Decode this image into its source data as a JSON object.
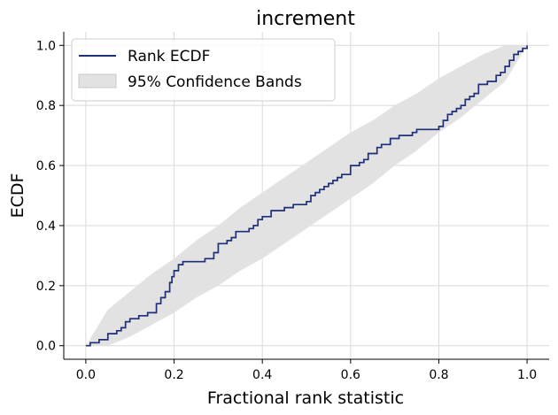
{
  "chart_data": {
    "type": "line",
    "title": "increment",
    "xlabel": "Fractional rank statistic",
    "ylabel": "ECDF",
    "xlim": [
      -0.05,
      1.05
    ],
    "ylim": [
      -0.045,
      1.045
    ],
    "xticks": [
      0.0,
      0.2,
      0.4,
      0.6,
      0.8,
      1.0
    ],
    "xtick_labels": [
      "0.0",
      "0.2",
      "0.4",
      "0.6",
      "0.8",
      "1.0"
    ],
    "yticks": [
      0.0,
      0.2,
      0.4,
      0.6,
      0.8,
      1.0
    ],
    "ytick_labels": [
      "0.0",
      "0.2",
      "0.4",
      "0.6",
      "0.8",
      "1.0"
    ],
    "grid": true,
    "legend_position": "top-left",
    "colors": {
      "ecdf": "#1f2f7a",
      "band": "#e2e2e2",
      "grid": "#d9d9d9"
    },
    "series": [
      {
        "name": "Rank ECDF",
        "type": "step",
        "x": [
          0.0,
          0.01,
          0.03,
          0.05,
          0.07,
          0.08,
          0.09,
          0.1,
          0.11,
          0.12,
          0.14,
          0.16,
          0.17,
          0.18,
          0.19,
          0.195,
          0.2,
          0.21,
          0.22,
          0.25,
          0.27,
          0.29,
          0.3,
          0.32,
          0.33,
          0.34,
          0.35,
          0.37,
          0.38,
          0.39,
          0.4,
          0.42,
          0.45,
          0.47,
          0.48,
          0.5,
          0.51,
          0.52,
          0.53,
          0.54,
          0.55,
          0.56,
          0.57,
          0.58,
          0.6,
          0.62,
          0.63,
          0.64,
          0.66,
          0.67,
          0.69,
          0.71,
          0.74,
          0.75,
          0.79,
          0.8,
          0.81,
          0.82,
          0.83,
          0.84,
          0.85,
          0.86,
          0.87,
          0.88,
          0.89,
          0.9,
          0.91,
          0.92,
          0.93,
          0.94,
          0.95,
          0.96,
          0.97,
          0.98,
          0.99,
          1.0
        ],
        "y": [
          0.0,
          0.01,
          0.02,
          0.04,
          0.05,
          0.06,
          0.08,
          0.09,
          0.09,
          0.1,
          0.11,
          0.14,
          0.16,
          0.18,
          0.21,
          0.23,
          0.25,
          0.27,
          0.28,
          0.28,
          0.29,
          0.31,
          0.34,
          0.35,
          0.36,
          0.38,
          0.38,
          0.39,
          0.4,
          0.42,
          0.43,
          0.45,
          0.46,
          0.47,
          0.47,
          0.48,
          0.5,
          0.51,
          0.52,
          0.53,
          0.54,
          0.55,
          0.56,
          0.57,
          0.6,
          0.61,
          0.62,
          0.64,
          0.66,
          0.67,
          0.69,
          0.7,
          0.71,
          0.72,
          0.72,
          0.73,
          0.75,
          0.77,
          0.78,
          0.79,
          0.8,
          0.82,
          0.83,
          0.84,
          0.87,
          0.87,
          0.88,
          0.88,
          0.9,
          0.91,
          0.93,
          0.95,
          0.97,
          0.98,
          0.99,
          1.0
        ]
      },
      {
        "name": "95% Confidence Bands",
        "type": "band",
        "x": [
          0.0,
          0.05,
          0.1,
          0.15,
          0.2,
          0.25,
          0.3,
          0.35,
          0.4,
          0.45,
          0.5,
          0.55,
          0.6,
          0.65,
          0.7,
          0.75,
          0.8,
          0.85,
          0.9,
          0.95,
          1.0
        ],
        "lower": [
          0.0,
          0.0,
          0.03,
          0.07,
          0.11,
          0.16,
          0.2,
          0.25,
          0.29,
          0.34,
          0.39,
          0.44,
          0.49,
          0.54,
          0.6,
          0.65,
          0.71,
          0.76,
          0.82,
          0.88,
          1.0
        ],
        "upper": [
          0.0,
          0.12,
          0.18,
          0.24,
          0.29,
          0.35,
          0.4,
          0.46,
          0.51,
          0.56,
          0.61,
          0.66,
          0.71,
          0.75,
          0.8,
          0.84,
          0.89,
          0.93,
          0.97,
          1.0,
          1.0
        ]
      }
    ]
  }
}
